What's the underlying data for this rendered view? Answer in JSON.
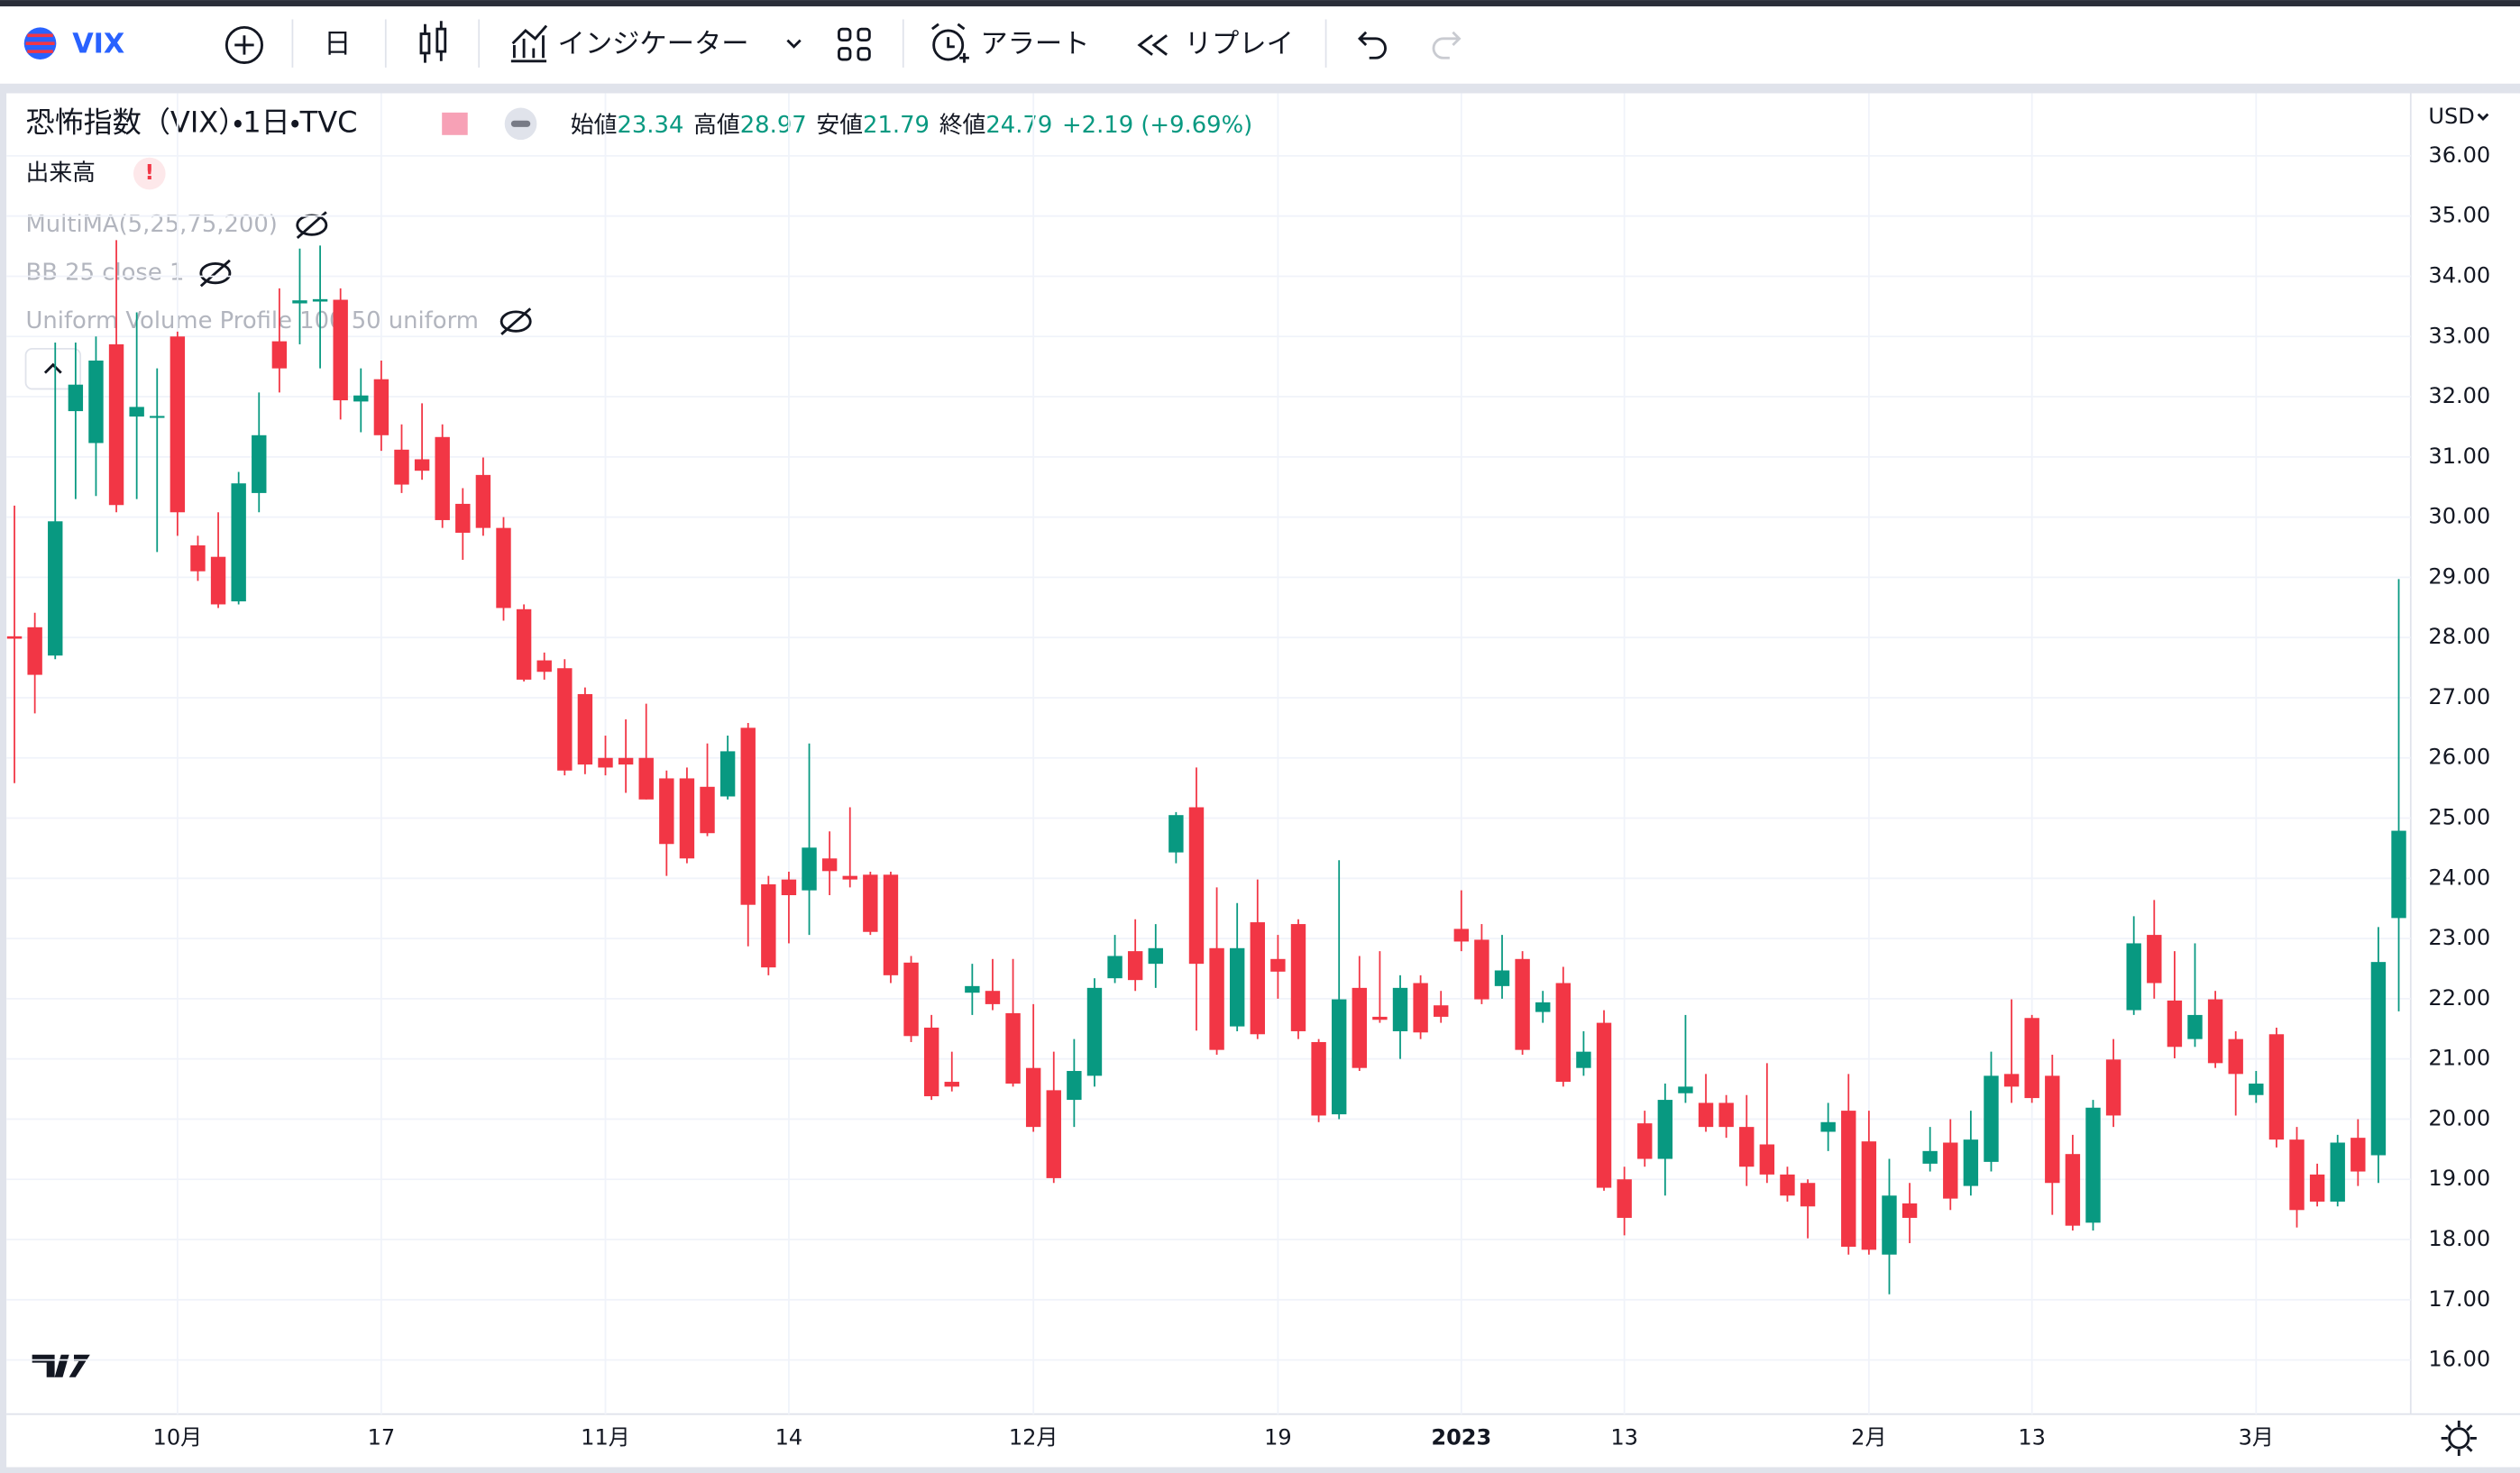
{
  "toolbar": {
    "symbol": "VIX",
    "interval": "日",
    "indicators": "インジケーター",
    "alert": "アラート",
    "replay": "リプレイ"
  },
  "legend": {
    "title": "恐怖指数（VIX）・1日・TVC",
    "open_label": "始値",
    "high_label": "高値",
    "low_label": "安値",
    "close_label": "終値",
    "change": "+2.19 (+9.69%)"
  },
  "studies": [
    "出来高",
    "MultiMA(5,25,75,200)",
    "BB 25 close 1",
    "Uniform Volume Profile 100 50 uniform"
  ],
  "price_axis": {
    "currency": "USD"
  },
  "chart_data": {
    "type": "candlestick",
    "up_color": "#089981",
    "down_color": "#f23645",
    "grid": true,
    "categories": [
      null,
      null,
      null,
      null,
      null,
      null,
      null,
      null,
      "10月",
      null,
      null,
      null,
      null,
      null,
      null,
      null,
      null,
      null,
      "17",
      null,
      null,
      null,
      null,
      null,
      null,
      null,
      null,
      null,
      null,
      "11月",
      null,
      null,
      null,
      null,
      null,
      null,
      null,
      null,
      "14",
      null,
      null,
      null,
      null,
      null,
      null,
      null,
      null,
      null,
      null,
      null,
      "12月",
      null,
      null,
      null,
      null,
      null,
      null,
      null,
      null,
      null,
      null,
      null,
      "19",
      null,
      null,
      null,
      null,
      null,
      null,
      null,
      null,
      "2023",
      null,
      null,
      null,
      null,
      null,
      null,
      null,
      "13",
      null,
      null,
      null,
      null,
      null,
      null,
      null,
      null,
      null,
      null,
      null,
      "2月",
      null,
      null,
      null,
      null,
      null,
      null,
      null,
      "13",
      null,
      null,
      null,
      null,
      null,
      null,
      null,
      null,
      null,
      null,
      "3月",
      null,
      null,
      null,
      null,
      null,
      null,
      null
    ],
    "open": [
      28.02,
      28.17,
      27.7,
      31.76,
      31.23,
      32.87,
      31.67,
      31.65,
      33.0,
      29.53,
      29.34,
      28.6,
      30.4,
      32.92,
      33.55,
      33.58,
      33.61,
      31.92,
      32.29,
      31.12,
      30.96,
      31.33,
      30.22,
      30.7,
      29.82,
      28.47,
      27.62,
      27.49,
      27.06,
      26.0,
      26.0,
      26.0,
      25.66,
      25.66,
      25.52,
      25.36,
      26.5,
      23.9,
      23.98,
      23.8,
      24.33,
      24.04,
      24.06,
      24.06,
      22.6,
      21.52,
      20.62,
      22.1,
      22.13,
      21.76,
      20.85,
      20.48,
      20.32,
      20.72,
      22.34,
      22.79,
      22.58,
      24.43,
      25.18,
      22.84,
      21.54,
      23.27,
      22.66,
      23.24,
      21.28,
      20.08,
      22.18,
      21.7,
      21.46,
      22.26,
      21.89,
      23.16,
      22.98,
      22.21,
      22.66,
      21.78,
      22.26,
      20.85,
      21.6,
      19.0,
      19.93,
      19.34,
      20.43,
      20.27,
      20.27,
      19.87,
      19.58,
      19.08,
      18.94,
      19.79,
      20.14,
      19.63,
      17.75,
      18.6,
      19.26,
      19.61,
      18.89,
      19.29,
      20.75,
      21.68,
      20.72,
      19.42,
      18.28,
      20.99,
      21.81,
      23.06,
      21.97,
      21.33,
      21.99,
      21.33,
      20.4,
      21.41,
      19.66,
      19.08,
      18.63,
      19.69,
      19.4,
      23.34
    ],
    "high": [
      30.19,
      28.41,
      32.9,
      32.9,
      33.0,
      34.6,
      33.4,
      32.47,
      33.08,
      29.69,
      30.08,
      30.75,
      32.07,
      33.8,
      34.46,
      34.51,
      33.8,
      32.47,
      32.6,
      31.54,
      31.89,
      31.54,
      30.48,
      30.99,
      30.0,
      28.55,
      27.75,
      27.64,
      27.17,
      26.37,
      26.64,
      26.9,
      25.79,
      25.84,
      26.24,
      26.37,
      26.58,
      24.04,
      24.11,
      26.24,
      24.78,
      25.18,
      24.11,
      24.11,
      22.71,
      21.73,
      21.12,
      22.58,
      22.66,
      22.66,
      21.91,
      21.12,
      21.33,
      22.34,
      23.06,
      23.32,
      23.24,
      25.1,
      25.84,
      23.85,
      23.59,
      23.98,
      23.06,
      23.32,
      21.33,
      24.3,
      22.71,
      22.79,
      22.39,
      22.39,
      22.13,
      23.8,
      23.24,
      23.06,
      22.79,
      22.13,
      22.53,
      21.46,
      21.81,
      19.21,
      20.14,
      20.59,
      21.73,
      20.75,
      20.4,
      20.4,
      20.93,
      19.21,
      19.0,
      20.27,
      20.75,
      20.14,
      19.34,
      18.94,
      19.87,
      20.0,
      20.14,
      21.12,
      21.99,
      21.73,
      21.07,
      19.74,
      20.32,
      21.33,
      23.37,
      23.64,
      22.79,
      22.92,
      22.13,
      21.46,
      20.8,
      21.52,
      19.87,
      19.26,
      19.74,
      20.0,
      23.19,
      28.97
    ],
    "low": [
      25.58,
      26.74,
      27.64,
      30.3,
      30.35,
      30.08,
      30.3,
      29.42,
      29.69,
      28.94,
      28.49,
      28.55,
      30.08,
      32.07,
      32.87,
      32.47,
      31.62,
      31.41,
      31.1,
      30.4,
      30.62,
      29.82,
      29.29,
      29.69,
      28.28,
      27.27,
      27.3,
      25.71,
      25.73,
      25.71,
      25.42,
      25.31,
      24.04,
      24.25,
      24.7,
      25.31,
      22.87,
      22.39,
      22.92,
      23.06,
      23.72,
      23.85,
      23.06,
      22.26,
      21.28,
      20.32,
      20.46,
      21.73,
      21.81,
      20.54,
      19.79,
      18.94,
      19.87,
      20.54,
      22.26,
      22.13,
      22.18,
      24.25,
      21.47,
      21.07,
      21.46,
      21.33,
      22.0,
      21.33,
      19.95,
      20.0,
      20.8,
      21.6,
      21.0,
      21.33,
      21.6,
      22.79,
      21.91,
      22.0,
      21.07,
      21.6,
      20.54,
      20.72,
      18.81,
      18.07,
      19.21,
      18.73,
      20.27,
      19.79,
      19.69,
      18.89,
      18.94,
      18.63,
      18.02,
      19.47,
      17.75,
      17.75,
      17.09,
      17.94,
      19.13,
      18.49,
      18.73,
      19.13,
      20.27,
      20.27,
      18.41,
      18.15,
      18.15,
      19.87,
      21.73,
      22.0,
      21.01,
      21.2,
      20.85,
      20.06,
      20.27,
      19.53,
      18.2,
      18.55,
      18.55,
      18.89,
      18.94,
      21.79
    ],
    "close": [
      27.98,
      27.38,
      29.93,
      32.2,
      32.6,
      30.2,
      31.83,
      31.68,
      30.08,
      29.1,
      28.55,
      30.56,
      31.36,
      32.47,
      33.6,
      33.62,
      31.94,
      32.02,
      31.36,
      30.54,
      30.77,
      29.95,
      29.74,
      29.82,
      28.49,
      27.3,
      27.43,
      25.79,
      25.89,
      25.84,
      25.89,
      25.31,
      24.57,
      24.33,
      24.75,
      26.11,
      23.56,
      22.52,
      23.72,
      24.51,
      24.12,
      23.98,
      23.11,
      22.39,
      21.38,
      20.38,
      20.54,
      22.21,
      21.91,
      20.59,
      19.87,
      19.02,
      20.8,
      22.18,
      22.71,
      22.31,
      22.84,
      25.05,
      22.58,
      21.15,
      22.84,
      21.41,
      22.45,
      21.46,
      20.06,
      21.99,
      20.85,
      21.65,
      22.18,
      21.44,
      21.7,
      22.95,
      21.99,
      22.47,
      21.15,
      21.94,
      20.62,
      21.12,
      18.86,
      18.36,
      19.34,
      20.32,
      20.54,
      19.87,
      19.87,
      19.21,
      19.08,
      18.73,
      18.55,
      19.95,
      17.88,
      17.83,
      18.73,
      18.36,
      19.47,
      18.68,
      19.66,
      20.72,
      20.54,
      20.35,
      18.94,
      18.23,
      20.19,
      20.06,
      22.92,
      22.26,
      21.2,
      21.73,
      20.93,
      20.75,
      20.59,
      19.66,
      18.49,
      18.63,
      19.61,
      19.13,
      22.61,
      24.79
    ],
    "ylim": [
      15.1,
      37.04
    ],
    "yticks": [
      {
        "value": 16,
        "label": "16.00"
      },
      {
        "value": 17,
        "label": "17.00"
      },
      {
        "value": 18,
        "label": "18.00"
      },
      {
        "value": 19,
        "label": "19.00"
      },
      {
        "value": 20,
        "label": "20.00"
      },
      {
        "value": 21,
        "label": "21.00"
      },
      {
        "value": 22,
        "label": "22.00"
      },
      {
        "value": 23,
        "label": "23.00"
      },
      {
        "value": 24,
        "label": "24.00"
      },
      {
        "value": 25,
        "label": "25.00"
      },
      {
        "value": 26,
        "label": "26.00"
      },
      {
        "value": 27,
        "label": "27.00"
      },
      {
        "value": 28,
        "label": "28.00"
      },
      {
        "value": 29,
        "label": "29.00"
      },
      {
        "value": 30,
        "label": "30.00"
      },
      {
        "value": 31,
        "label": "31.00"
      },
      {
        "value": 32,
        "label": "32.00"
      },
      {
        "value": 33,
        "label": "33.00"
      },
      {
        "value": 34,
        "label": "34.00"
      },
      {
        "value": 35,
        "label": "35.00"
      },
      {
        "value": 36,
        "label": "36.00"
      }
    ]
  }
}
